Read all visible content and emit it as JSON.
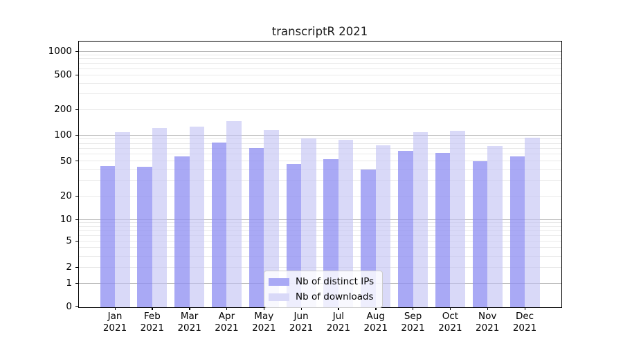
{
  "title": "transcriptR 2021",
  "legend": {
    "items": [
      {
        "label": "Nb of distinct IPs",
        "swatch_color": "#a9a9f5",
        "fill": "rgba(145,145,242,0.78)"
      },
      {
        "label": "Nb of downloads",
        "swatch_color": "#d9d9f8",
        "fill": "rgba(194,194,244,0.62)"
      }
    ]
  },
  "x_axis": {
    "months": [
      "Jan",
      "Feb",
      "Mar",
      "Apr",
      "May",
      "Jun",
      "Jul",
      "Aug",
      "Sep",
      "Oct",
      "Nov",
      "Dec"
    ],
    "year": "2021"
  },
  "y_axis": {
    "tick_values": [
      0,
      1,
      2,
      5,
      10,
      20,
      50,
      100,
      200,
      500,
      1000
    ],
    "tick_labels": [
      "0",
      "1",
      "2",
      "5",
      "10",
      "20",
      "50",
      "100",
      "200",
      "500",
      "1000"
    ],
    "major_grid_values": [
      1,
      10,
      100,
      1000
    ],
    "minor_grid_values": [
      2,
      3,
      4,
      5,
      6,
      7,
      8,
      9,
      20,
      30,
      40,
      50,
      60,
      70,
      80,
      90,
      200,
      300,
      400,
      500,
      600,
      700,
      800,
      900
    ]
  },
  "colors": {
    "distinct_ips": "#a9a9f5",
    "downloads": "#d9d9f8",
    "major_grid": "#b3b3b3",
    "minor_grid": "#e9e9e9",
    "axis": "#000000"
  },
  "chart_data": {
    "type": "bar",
    "title": "transcriptR 2021",
    "categories": [
      "Jan 2021",
      "Feb 2021",
      "Mar 2021",
      "Apr 2021",
      "May 2021",
      "Jun 2021",
      "Jul 2021",
      "Aug 2021",
      "Sep 2021",
      "Oct 2021",
      "Nov 2021",
      "Dec 2021"
    ],
    "series": [
      {
        "name": "Nb of distinct IPs",
        "color": "#a9a9f5",
        "values": [
          44,
          43,
          56,
          82,
          71,
          46,
          52,
          40,
          65,
          62,
          50,
          56
        ]
      },
      {
        "name": "Nb of downloads",
        "color": "#d9d9f8",
        "values": [
          108,
          120,
          125,
          146,
          115,
          91,
          88,
          76,
          108,
          111,
          74,
          93
        ]
      }
    ],
    "xlabel": "",
    "ylabel": "",
    "y_scale": "log-like (symlog), labeled ticks at 0,1,2,5,10,20,50,100,200,500,1000",
    "ylim": [
      0,
      1000
    ],
    "grid": true,
    "legend_position": "lower center (inside plot)"
  }
}
